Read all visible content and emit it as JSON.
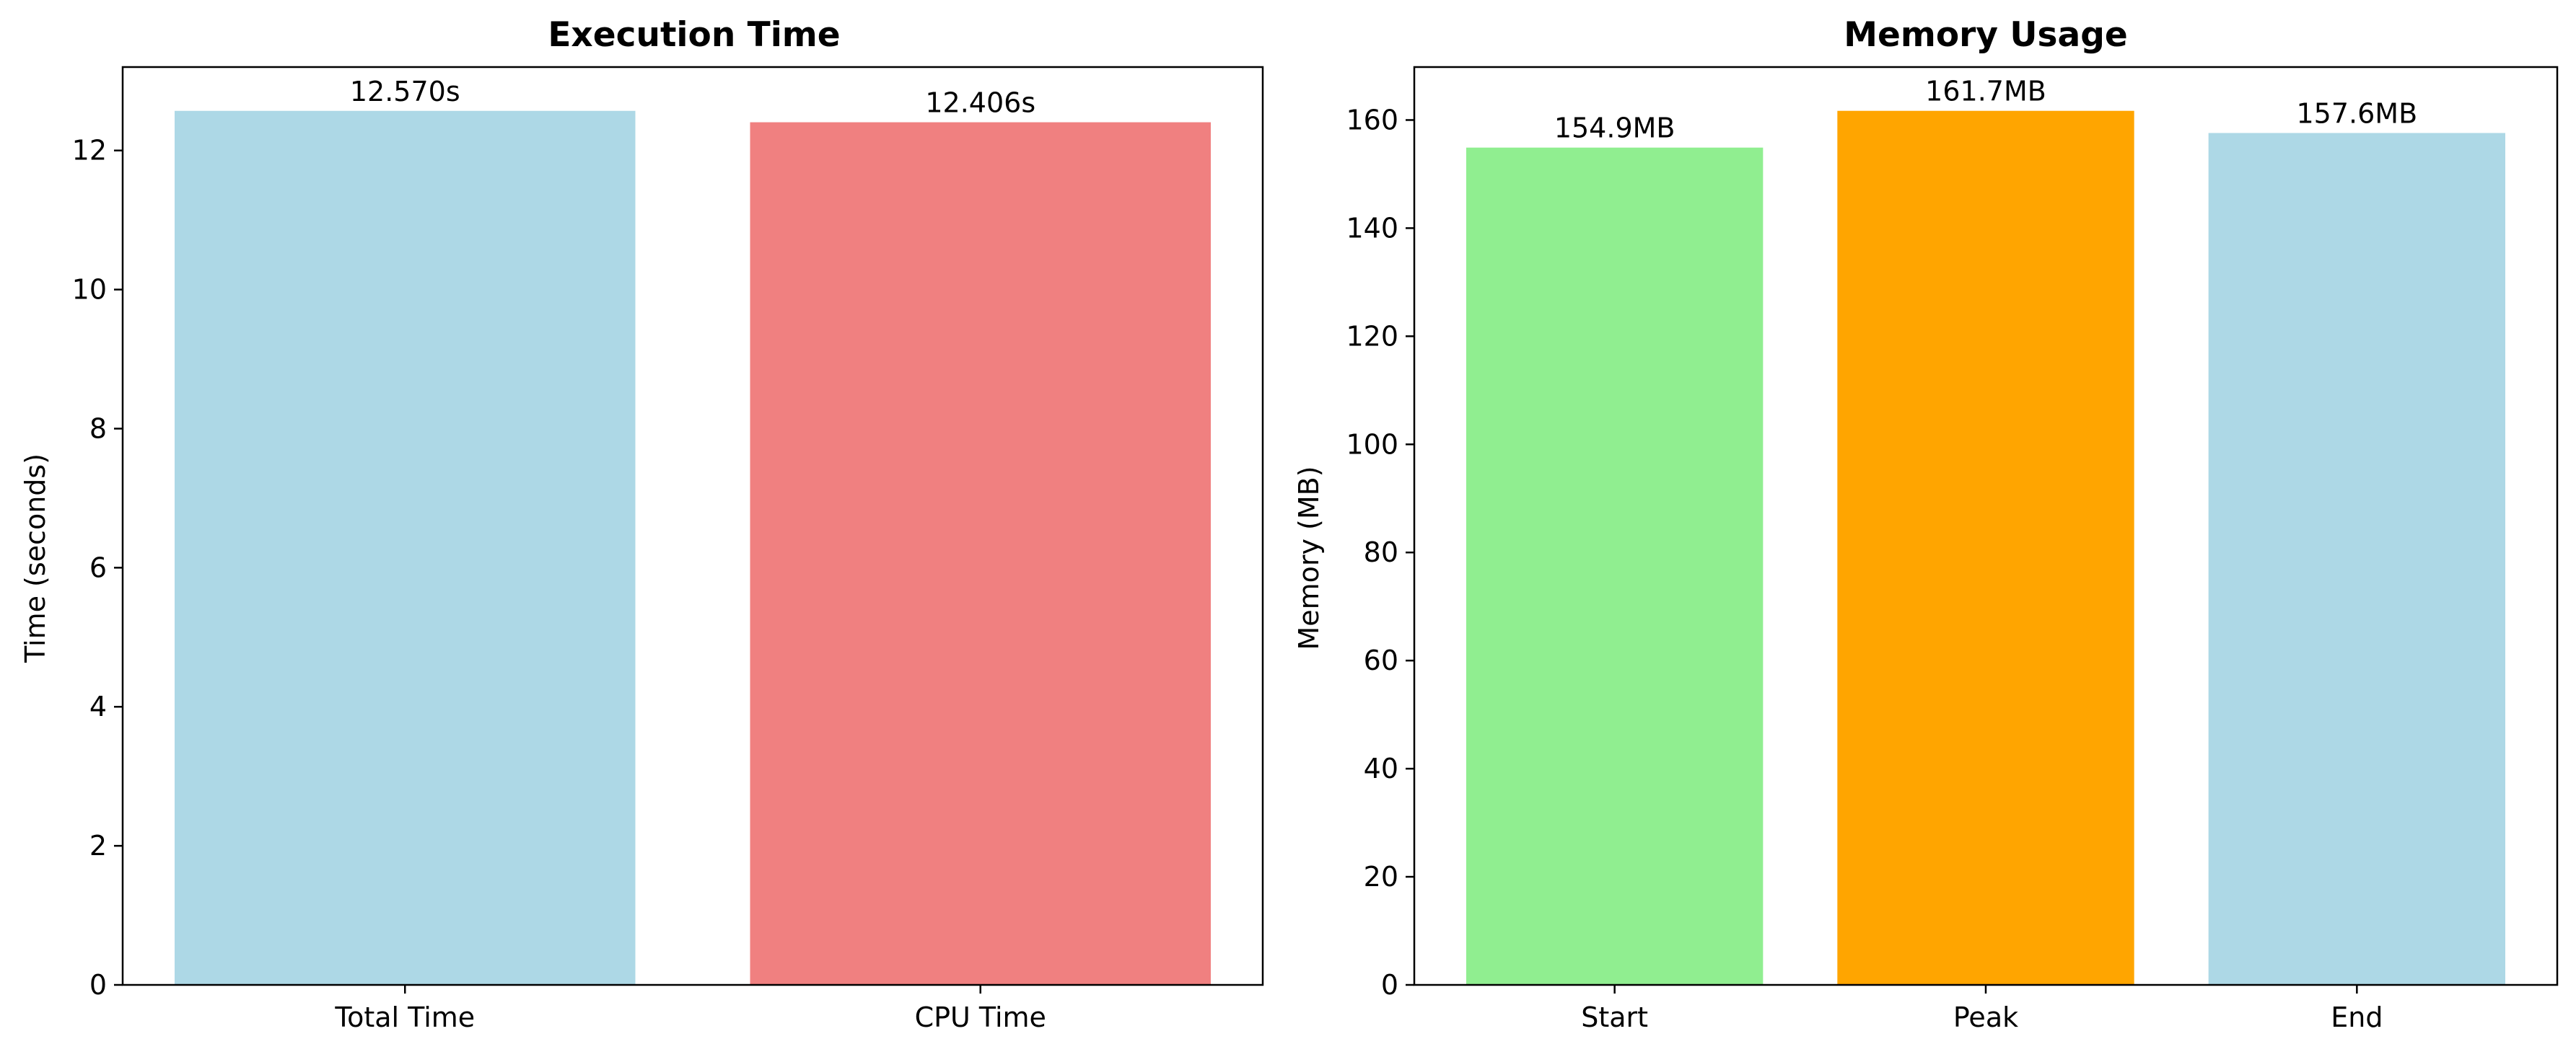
{
  "chart_data": [
    {
      "type": "bar",
      "title": "Execution Time",
      "xlabel": "",
      "ylabel": "Time (seconds)",
      "categories": [
        "Total Time",
        "CPU Time"
      ],
      "values": [
        12.57,
        12.406
      ],
      "data_labels": [
        "12.570s",
        "12.406s"
      ],
      "colors": [
        "#add8e6",
        "#f08080"
      ],
      "ylim": [
        0,
        13.2
      ],
      "yticks": [
        0,
        2,
        4,
        6,
        8,
        10,
        12
      ],
      "grid": false,
      "legend": "none"
    },
    {
      "type": "bar",
      "title": "Memory Usage",
      "xlabel": "",
      "ylabel": "Memory (MB)",
      "categories": [
        "Start",
        "Peak",
        "End"
      ],
      "values": [
        154.9,
        161.7,
        157.6
      ],
      "data_labels": [
        "154.9MB",
        "161.7MB",
        "157.6MB"
      ],
      "colors": [
        "#90ee90",
        "#ffa500",
        "#add8e6"
      ],
      "ylim": [
        0,
        169.8
      ],
      "yticks": [
        0,
        20,
        40,
        60,
        80,
        100,
        120,
        140,
        160
      ],
      "grid": false,
      "legend": "none"
    }
  ]
}
